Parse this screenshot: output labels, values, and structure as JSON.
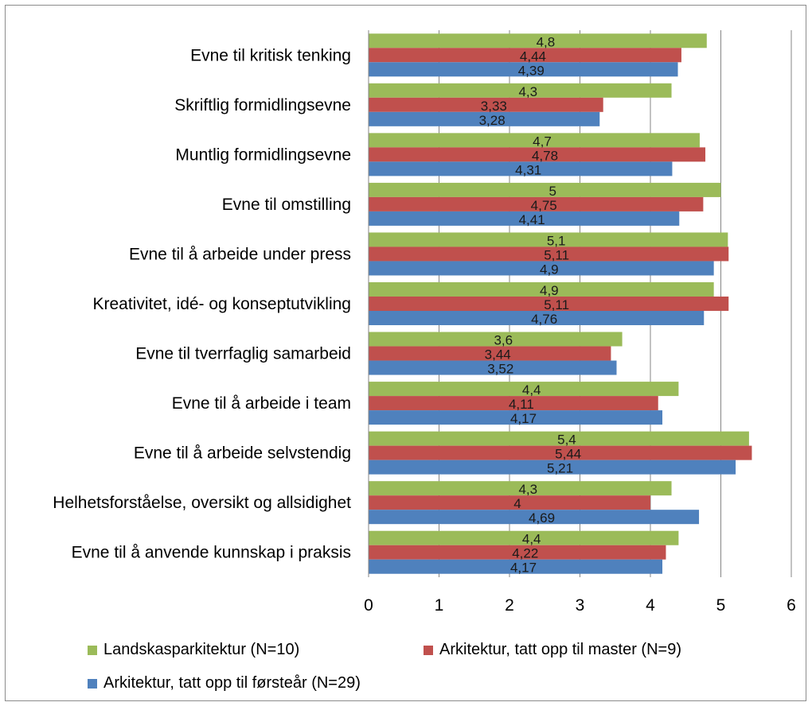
{
  "chart_data": {
    "type": "bar",
    "orientation": "horizontal",
    "categories": [
      "Evne til kritisk tenking",
      "Skriftlig formidlingsevne",
      "Muntlig formidlingsevne",
      "Evne til omstilling",
      "Evne til å arbeide under press",
      "Kreativitet, idé- og konseptutvikling",
      "Evne til tverrfaglig samarbeid",
      "Evne til å arbeide i team",
      "Evne til å arbeide selvstendig",
      "Helhetsforståelse, oversikt og allsidighet",
      "Evne til å anvende kunnskap i praksis"
    ],
    "series": [
      {
        "name": "Landskasparkitektur (N=10)",
        "color": "#9bbb59",
        "values": [
          4.8,
          4.3,
          4.7,
          5,
          5.1,
          4.9,
          3.6,
          4.4,
          5.4,
          4.3,
          4.4
        ],
        "labels": [
          "4,8",
          "4,3",
          "4,7",
          "5",
          "5,1",
          "4,9",
          "3,6",
          "4,4",
          "5,4",
          "4,3",
          "4,4"
        ]
      },
      {
        "name": "Arkitektur, tatt opp til master (N=9)",
        "color": "#c0504d",
        "values": [
          4.44,
          3.33,
          4.78,
          4.75,
          5.11,
          5.11,
          3.44,
          4.11,
          5.44,
          4,
          4.22
        ],
        "labels": [
          "4,44",
          "3,33",
          "4,78",
          "4,75",
          "5,11",
          "5,11",
          "3,44",
          "4,11",
          "5,44",
          "4",
          "4,22"
        ]
      },
      {
        "name": "Arkitektur, tatt opp til førsteår (N=29)",
        "color": "#4f81bd",
        "values": [
          4.39,
          3.28,
          4.31,
          4.41,
          4.9,
          4.76,
          3.52,
          4.17,
          5.21,
          4.69,
          4.17
        ],
        "labels": [
          "4,39",
          "3,28",
          "4,31",
          "4,41",
          "4,9",
          "4,76",
          "3,52",
          "4,17",
          "5,21",
          "4,69",
          "4,17"
        ]
      }
    ],
    "xlim": [
      0,
      6
    ],
    "xticks": [
      "0",
      "1",
      "2",
      "3",
      "4",
      "5",
      "6"
    ],
    "grid": true,
    "legend_position": "bottom",
    "title": "",
    "xlabel": "",
    "ylabel": ""
  }
}
